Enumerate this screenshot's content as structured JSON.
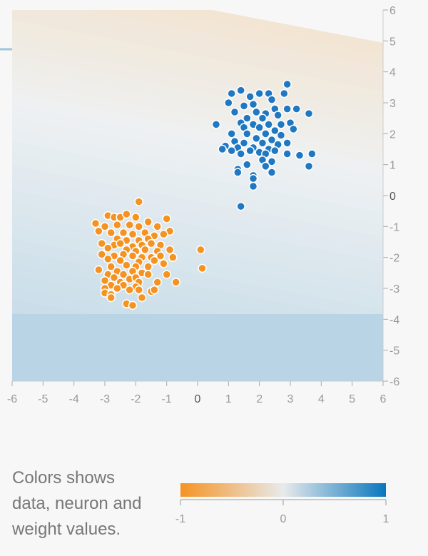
{
  "chart_data": {
    "type": "scatter",
    "title": "",
    "xlabel": "",
    "ylabel": "",
    "xlim": [
      -6,
      6
    ],
    "ylim": [
      -6,
      6
    ],
    "x_ticks": [
      "-6",
      "-5",
      "-4",
      "-3",
      "-2",
      "-1",
      "0",
      "1",
      "2",
      "3",
      "4",
      "5",
      "6"
    ],
    "y_ticks": [
      "6",
      "5",
      "4",
      "3",
      "2",
      "1",
      "0",
      "-1",
      "-2",
      "-3",
      "-4",
      "-5",
      "-6"
    ],
    "background": "decision boundary heatmap, orange (-1) to blue (+1)",
    "series": [
      {
        "color": "#1f78c1",
        "label_value": 1,
        "points": [
          [
            1.4,
            3.4
          ],
          [
            2.9,
            3.6
          ],
          [
            1.1,
            3.3
          ],
          [
            2.0,
            3.3
          ],
          [
            2.3,
            3.3
          ],
          [
            2.8,
            3.3
          ],
          [
            1.7,
            3.2
          ],
          [
            2.4,
            3.1
          ],
          [
            1.0,
            3.0
          ],
          [
            1.5,
            2.9
          ],
          [
            1.8,
            2.95
          ],
          [
            2.5,
            2.8
          ],
          [
            2.9,
            2.8
          ],
          [
            3.2,
            2.8
          ],
          [
            3.6,
            2.65
          ],
          [
            1.2,
            2.7
          ],
          [
            1.9,
            2.7
          ],
          [
            2.2,
            2.65
          ],
          [
            2.6,
            2.6
          ],
          [
            1.6,
            2.5
          ],
          [
            2.1,
            2.5
          ],
          [
            1.4,
            2.35
          ],
          [
            1.8,
            2.3
          ],
          [
            2.3,
            2.3
          ],
          [
            2.7,
            2.3
          ],
          [
            3.0,
            2.35
          ],
          [
            0.6,
            2.3
          ],
          [
            1.5,
            2.2
          ],
          [
            2.0,
            2.2
          ],
          [
            2.5,
            2.1
          ],
          [
            3.1,
            2.15
          ],
          [
            1.1,
            2.0
          ],
          [
            1.6,
            2.0
          ],
          [
            2.2,
            2.0
          ],
          [
            2.7,
            1.95
          ],
          [
            1.9,
            1.85
          ],
          [
            2.4,
            1.8
          ],
          [
            1.2,
            1.75
          ],
          [
            1.5,
            1.7
          ],
          [
            2.1,
            1.7
          ],
          [
            2.6,
            1.65
          ],
          [
            2.9,
            1.7
          ],
          [
            0.9,
            1.6
          ],
          [
            1.3,
            1.55
          ],
          [
            1.8,
            1.55
          ],
          [
            2.3,
            1.5
          ],
          [
            0.8,
            1.5
          ],
          [
            1.7,
            1.45
          ],
          [
            2.0,
            1.4
          ],
          [
            2.5,
            1.45
          ],
          [
            1.1,
            1.45
          ],
          [
            1.4,
            1.35
          ],
          [
            2.2,
            1.35
          ],
          [
            2.9,
            1.35
          ],
          [
            3.3,
            1.3
          ],
          [
            3.7,
            1.35
          ],
          [
            2.1,
            1.15
          ],
          [
            2.4,
            1.1
          ],
          [
            1.6,
            1.0
          ],
          [
            2.2,
            0.95
          ],
          [
            1.3,
            0.85
          ],
          [
            1.3,
            0.75
          ],
          [
            2.4,
            0.75
          ],
          [
            3.6,
            0.95
          ],
          [
            1.8,
            0.65
          ],
          [
            1.8,
            0.55
          ],
          [
            1.8,
            0.3
          ],
          [
            1.4,
            -0.35
          ]
        ]
      },
      {
        "color": "#f59322",
        "label_value": -1,
        "points": [
          [
            -1.9,
            -0.2
          ],
          [
            -2.9,
            -0.65
          ],
          [
            -2.7,
            -0.7
          ],
          [
            -2.5,
            -0.7
          ],
          [
            -2.3,
            -0.6
          ],
          [
            -2.0,
            -0.7
          ],
          [
            -1.6,
            -0.85
          ],
          [
            -1.0,
            -0.75
          ],
          [
            -3.3,
            -0.9
          ],
          [
            -3.0,
            -1.0
          ],
          [
            -2.6,
            -0.95
          ],
          [
            -2.2,
            -0.95
          ],
          [
            -1.9,
            -1.0
          ],
          [
            -1.3,
            -1.0
          ],
          [
            -0.9,
            -1.15
          ],
          [
            -3.2,
            -1.15
          ],
          [
            -2.8,
            -1.2
          ],
          [
            -2.4,
            -1.2
          ],
          [
            -2.1,
            -1.25
          ],
          [
            -1.7,
            -1.2
          ],
          [
            -1.4,
            -1.3
          ],
          [
            -1.1,
            -1.25
          ],
          [
            -2.6,
            -1.4
          ],
          [
            -2.3,
            -1.45
          ],
          [
            -1.9,
            -1.45
          ],
          [
            -1.6,
            -1.4
          ],
          [
            -3.1,
            -1.55
          ],
          [
            -2.7,
            -1.6
          ],
          [
            -2.5,
            -1.55
          ],
          [
            -2.1,
            -1.65
          ],
          [
            -1.8,
            -1.6
          ],
          [
            -1.5,
            -1.55
          ],
          [
            -1.2,
            -1.6
          ],
          [
            -2.9,
            -1.7
          ],
          [
            -2.3,
            -1.75
          ],
          [
            -2.0,
            -1.8
          ],
          [
            -1.7,
            -1.75
          ],
          [
            -1.3,
            -1.8
          ],
          [
            -0.9,
            -1.75
          ],
          [
            0.1,
            -1.75
          ],
          [
            -3.1,
            -1.9
          ],
          [
            -2.7,
            -1.95
          ],
          [
            -2.4,
            -1.9
          ],
          [
            -2.1,
            -1.95
          ],
          [
            -1.8,
            -2.0
          ],
          [
            -1.5,
            -2.0
          ],
          [
            -1.2,
            -1.95
          ],
          [
            -0.8,
            -2.0
          ],
          [
            -2.9,
            -2.05
          ],
          [
            -2.5,
            -2.1
          ],
          [
            -1.9,
            -2.15
          ],
          [
            -1.4,
            -2.1
          ],
          [
            -2.8,
            -2.3
          ],
          [
            -2.3,
            -2.25
          ],
          [
            -2.0,
            -2.3
          ],
          [
            -1.6,
            -2.3
          ],
          [
            -1.1,
            -2.2
          ],
          [
            0.15,
            -2.35
          ],
          [
            -3.2,
            -2.4
          ],
          [
            -2.6,
            -2.45
          ],
          [
            -2.1,
            -2.45
          ],
          [
            -1.8,
            -2.5
          ],
          [
            -2.9,
            -2.55
          ],
          [
            -2.4,
            -2.55
          ],
          [
            -1.6,
            -2.55
          ],
          [
            -1.0,
            -2.55
          ],
          [
            -2.7,
            -2.65
          ],
          [
            -2.2,
            -2.7
          ],
          [
            -2.0,
            -2.65
          ],
          [
            -3.0,
            -2.75
          ],
          [
            -2.5,
            -2.8
          ],
          [
            -1.9,
            -2.8
          ],
          [
            -1.3,
            -2.8
          ],
          [
            -0.7,
            -2.8
          ],
          [
            -2.8,
            -2.9
          ],
          [
            -2.4,
            -2.9
          ],
          [
            -2.0,
            -2.95
          ],
          [
            -3.0,
            -3.0
          ],
          [
            -2.6,
            -3.0
          ],
          [
            -2.2,
            -3.05
          ],
          [
            -1.9,
            -3.05
          ],
          [
            -1.5,
            -3.1
          ],
          [
            -1.4,
            -3.05
          ],
          [
            -3.0,
            -3.15
          ],
          [
            -2.8,
            -3.2
          ],
          [
            -2.8,
            -3.3
          ],
          [
            -1.8,
            -3.3
          ],
          [
            -2.3,
            -3.5
          ],
          [
            -2.1,
            -3.55
          ]
        ]
      }
    ],
    "legend": {
      "caption_lines": [
        "Colors shows",
        "data, neuron and",
        "weight values."
      ],
      "scale_ticks": [
        "-1",
        "0",
        "1"
      ],
      "scale_colors": [
        "#f59322",
        "#e8eaeb",
        "#0877bd"
      ]
    }
  }
}
